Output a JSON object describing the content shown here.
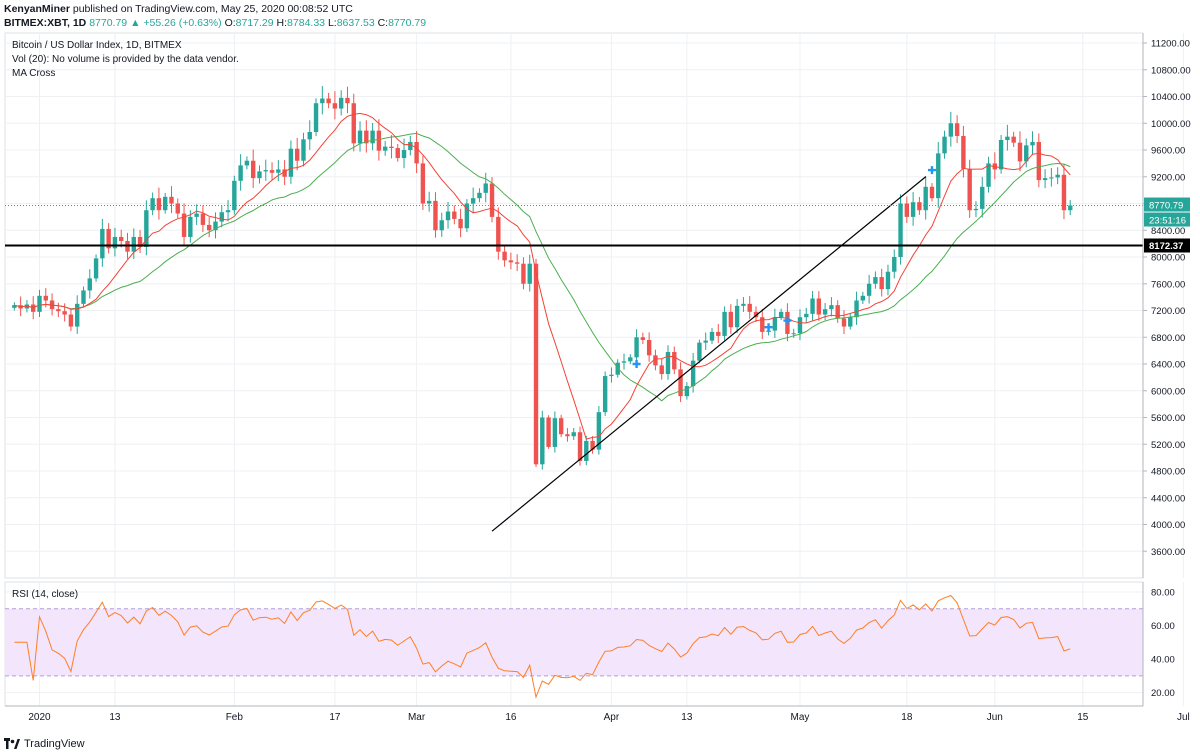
{
  "header": {
    "author": "KenyanMiner",
    "published": "published on TradingView.com, May 25, 2020 00:08:52 UTC",
    "symbol": "BITMEX:XBT, 1D",
    "last": "8770.79",
    "change": "+55.26 (+0.63%)",
    "o_label": "O:",
    "o": "8717.29",
    "h_label": "H:",
    "h": "8784.33",
    "l_label": "L:",
    "l": "8637.53",
    "c_label": "C:",
    "c": "8770.79"
  },
  "legend": {
    "title": "Bitcoin / US Dollar Index, 1D, BITMEX",
    "vol": "Vol (20): No volume is provided by the data vendor.",
    "ma": "MA Cross",
    "rsi": "RSI (14, close)"
  },
  "footer": {
    "brand": "TradingView"
  },
  "colors": {
    "up": "#26a69a",
    "down": "#ef5350",
    "ma_fast": "#f44336",
    "ma_slow": "#4caf50",
    "rsi": "#ff7f27",
    "rsi_band": "#f3e5fc",
    "grid": "#eef0f3",
    "support": "#000000",
    "price_line": "#26a69a",
    "cross": "#2196f3"
  },
  "chart_data": [
    {
      "type": "candlestick",
      "title": "Bitcoin / US Dollar Index, 1D, BITMEX",
      "y_ticks": [
        3600,
        4000,
        4400,
        4800,
        5200,
        5600,
        6000,
        6400,
        6800,
        7200,
        7600,
        8000,
        8400,
        8800,
        9200,
        9600,
        10000,
        10400,
        10800,
        11200
      ],
      "y_tick_labels": [
        "3600.00",
        "4000.00",
        "4400.00",
        "4800.00",
        "5200.00",
        "5600.00",
        "6000.00",
        "6400.00",
        "6800.00",
        "7200.00",
        "7600.00",
        "8000.00",
        "8400.00",
        "8800.00",
        "9200.00",
        "9600.00",
        "10000.00",
        "10400.00",
        "10800.00",
        "11200.00"
      ],
      "ylim": [
        3200,
        11350
      ],
      "x_tick_labels": [
        "2020",
        "13",
        "Feb",
        "17",
        "Mar",
        "16",
        "Apr",
        "13",
        "May",
        "18",
        "Jun",
        "15",
        "Jul"
      ],
      "x_tick_days": [
        0,
        12,
        31,
        47,
        60,
        75,
        91,
        103,
        121,
        138,
        152,
        166,
        182
      ],
      "first_day_offset": -4,
      "closes": [
        7280,
        7230,
        7290,
        7180,
        7420,
        7350,
        7220,
        7190,
        7140,
        6960,
        7300,
        7500,
        7680,
        7980,
        8420,
        8130,
        8300,
        8240,
        8080,
        8300,
        8150,
        8700,
        8880,
        8700,
        8900,
        8800,
        8650,
        8300,
        8600,
        8650,
        8480,
        8400,
        8530,
        8670,
        8700,
        9140,
        9370,
        9440,
        9180,
        9280,
        9300,
        9260,
        9310,
        9200,
        9620,
        9440,
        9760,
        9870,
        10300,
        10370,
        10300,
        10220,
        10380,
        10300,
        9700,
        9890,
        9700,
        9890,
        9590,
        9650,
        9630,
        9480,
        9600,
        9720,
        9400,
        8800,
        8840,
        8400,
        8550,
        8680,
        8570,
        8430,
        8800,
        8880,
        8960,
        9100,
        8600,
        8080,
        7950,
        7920,
        7900,
        7600,
        7900,
        4900,
        5600,
        5160,
        5590,
        5350,
        5320,
        5380,
        4950,
        5250,
        5120,
        5680,
        6220,
        6240,
        6420,
        6440,
        6500,
        6800,
        6760,
        6530,
        6380,
        6250,
        6580,
        6320,
        5920,
        6070,
        6450,
        6720,
        6750,
        6880,
        6820,
        7180,
        6950,
        7270,
        7300,
        7180,
        7100,
        6880,
        6900,
        7100,
        7180,
        6850,
        6860,
        7100,
        7150,
        7380,
        7140,
        7220,
        7280,
        7080,
        6960,
        7100,
        7350,
        7420,
        7600,
        7700,
        7520,
        7780,
        8000,
        8800,
        8600,
        8820,
        8700,
        9050,
        8880,
        9550,
        9800,
        10000,
        9810,
        9320,
        8700,
        8720,
        9050,
        9400,
        9310,
        9750,
        9800,
        9710,
        9430,
        9670,
        9720,
        9150,
        9180,
        9190,
        9230,
        8700,
        8770
      ],
      "fast_ma_period": 9,
      "slow_ma_period": 21,
      "support_level": 8172.37,
      "support_label": "8172.37",
      "last_price_label": "8770.79",
      "countdown_label": "23:51:16",
      "trendline": [
        {
          "day": 72,
          "value": 3900
        },
        {
          "day": 141,
          "value": 9200
        }
      ],
      "cross_markers": [
        {
          "day": 95,
          "value": 6400
        },
        {
          "day": 116,
          "value": 6950
        },
        {
          "day": 119,
          "value": 7050
        },
        {
          "day": 142,
          "value": 9300
        }
      ]
    },
    {
      "type": "line",
      "title": "RSI (14, close)",
      "y_ticks": [
        20,
        40,
        60,
        80
      ],
      "y_tick_labels": [
        "20.00",
        "40.00",
        "60.00",
        "80.00"
      ],
      "ylim": [
        12,
        86
      ],
      "band": [
        30,
        70
      ]
    }
  ]
}
